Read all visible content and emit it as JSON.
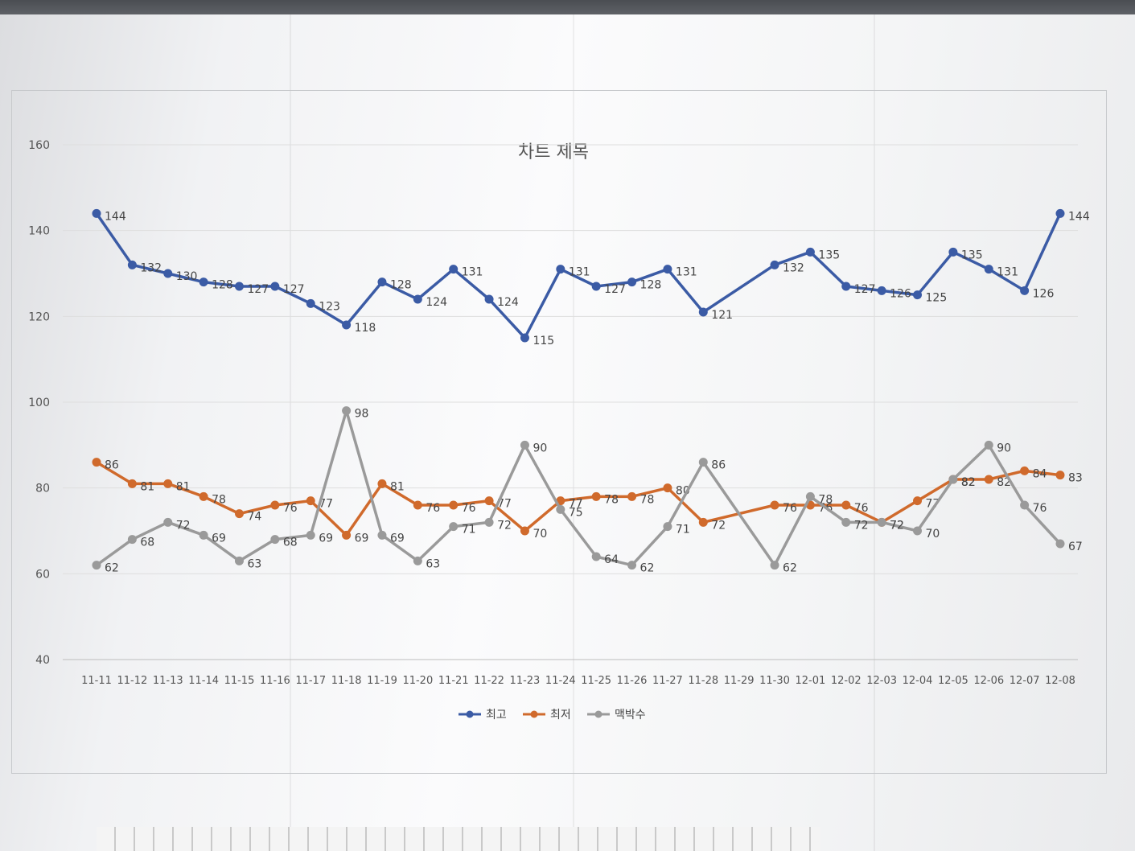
{
  "chart_data": {
    "type": "line",
    "title": "차트 제목",
    "categories": [
      "11-11",
      "11-12",
      "11-13",
      "11-14",
      "11-15",
      "11-16",
      "11-17",
      "11-18",
      "11-19",
      "11-20",
      "11-21",
      "11-22",
      "11-23",
      "11-24",
      "11-25",
      "11-26",
      "11-27",
      "11-28",
      "11-29",
      "11-30",
      "12-01",
      "12-02",
      "12-03",
      "12-04",
      "12-05",
      "12-06",
      "12-07",
      "12-08"
    ],
    "ylim": [
      40,
      160
    ],
    "yticks": [
      40,
      60,
      80,
      100,
      120,
      140,
      160
    ],
    "grid": true,
    "legend_position": "bottom",
    "series": [
      {
        "name": "최고",
        "color": "#3b5ba5",
        "values": [
          144,
          132,
          130,
          128,
          127,
          127,
          123,
          118,
          128,
          124,
          131,
          124,
          115,
          131,
          127,
          128,
          131,
          121,
          null,
          132,
          135,
          127,
          126,
          125,
          135,
          131,
          126,
          144
        ]
      },
      {
        "name": "최저",
        "color": "#d06a2c",
        "values": [
          86,
          81,
          81,
          78,
          74,
          76,
          77,
          69,
          81,
          76,
          76,
          77,
          70,
          77,
          78,
          78,
          80,
          72,
          null,
          76,
          76,
          76,
          72,
          77,
          82,
          82,
          84,
          83
        ]
      },
      {
        "name": "맥박수",
        "color": "#9a9a9a",
        "values": [
          62,
          68,
          72,
          69,
          63,
          68,
          69,
          98,
          69,
          63,
          71,
          72,
          90,
          75,
          64,
          62,
          71,
          86,
          null,
          62,
          78,
          72,
          72,
          70,
          82,
          90,
          76,
          67
        ]
      }
    ]
  }
}
